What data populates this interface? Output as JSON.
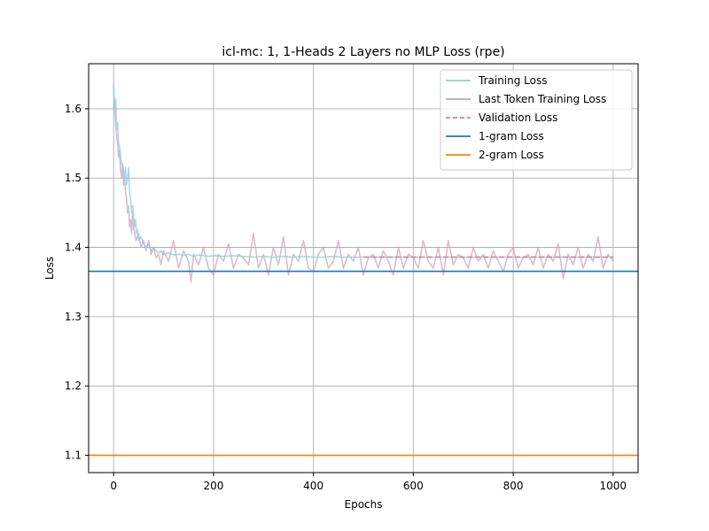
{
  "chart_data": {
    "type": "line",
    "title": "icl-mc: 1, 1-Heads 2 Layers no MLP  Loss (rpe)",
    "xlabel": "Epochs",
    "ylabel": "Loss",
    "xlim": [
      -50,
      1050
    ],
    "ylim": [
      1.075,
      1.665
    ],
    "x_ticks": [
      0,
      200,
      400,
      600,
      800,
      1000
    ],
    "y_ticks": [
      1.1,
      1.2,
      1.3,
      1.4,
      1.5,
      1.6
    ],
    "x_tick_labels": [
      "0",
      "200",
      "400",
      "600",
      "800",
      "1000"
    ],
    "y_tick_labels": [
      "1.1",
      "1.2",
      "1.3",
      "1.4",
      "1.5",
      "1.6"
    ],
    "grid": true,
    "legend_position": "top-right",
    "series": [
      {
        "name": "Training Loss",
        "color": "#87ceeb",
        "style": "solid",
        "x": [
          0,
          2,
          4,
          6,
          8,
          10,
          12,
          14,
          16,
          18,
          20,
          22,
          24,
          26,
          28,
          30,
          32,
          34,
          36,
          38,
          40,
          42,
          44,
          46,
          48,
          50,
          55,
          60,
          65,
          70,
          75,
          80,
          85,
          90,
          95,
          100,
          110,
          120,
          130,
          140,
          150,
          160,
          170,
          180,
          190,
          200,
          220,
          240,
          260,
          280,
          300,
          320,
          340,
          360,
          380,
          400,
          420,
          440,
          460,
          480,
          500,
          550,
          600,
          650,
          700,
          750,
          800,
          850,
          900,
          950,
          1000
        ],
        "y": [
          1.635,
          1.6,
          1.615,
          1.57,
          1.58,
          1.55,
          1.545,
          1.53,
          1.52,
          1.52,
          1.51,
          1.5,
          1.515,
          1.49,
          1.5,
          1.515,
          1.48,
          1.47,
          1.45,
          1.46,
          1.445,
          1.43,
          1.44,
          1.42,
          1.425,
          1.41,
          1.415,
          1.405,
          1.4,
          1.405,
          1.395,
          1.4,
          1.395,
          1.392,
          1.395,
          1.39,
          1.392,
          1.389,
          1.39,
          1.388,
          1.39,
          1.387,
          1.389,
          1.388,
          1.387,
          1.388,
          1.387,
          1.388,
          1.387,
          1.386,
          1.387,
          1.386,
          1.387,
          1.386,
          1.387,
          1.386,
          1.386,
          1.387,
          1.386,
          1.386,
          1.386,
          1.386,
          1.386,
          1.386,
          1.386,
          1.386,
          1.386,
          1.386,
          1.386,
          1.386,
          1.386
        ]
      },
      {
        "name": "Last Token Training Loss",
        "color": "#c8a2b8",
        "style": "solid",
        "x": [
          0,
          2,
          4,
          6,
          8,
          10,
          12,
          14,
          16,
          18,
          20,
          22,
          24,
          26,
          28,
          30,
          32,
          34,
          36,
          38,
          40,
          45,
          50,
          55,
          60,
          65,
          70,
          75,
          80,
          85,
          90,
          95,
          100,
          110,
          120,
          130,
          140,
          150,
          155,
          160,
          170,
          180,
          190,
          200,
          210,
          220,
          230,
          240,
          250,
          260,
          270,
          280,
          290,
          300,
          310,
          320,
          330,
          340,
          350,
          360,
          370,
          380,
          390,
          400,
          410,
          420,
          430,
          440,
          450,
          460,
          470,
          480,
          490,
          500,
          510,
          520,
          530,
          540,
          550,
          560,
          570,
          580,
          590,
          600,
          610,
          620,
          630,
          640,
          650,
          660,
          670,
          680,
          690,
          700,
          710,
          720,
          730,
          740,
          750,
          760,
          770,
          780,
          790,
          800,
          810,
          820,
          830,
          840,
          850,
          860,
          870,
          880,
          890,
          900,
          910,
          920,
          930,
          940,
          950,
          960,
          970,
          980,
          990,
          1000
        ],
        "y": [
          1.6,
          1.61,
          1.58,
          1.56,
          1.55,
          1.53,
          1.54,
          1.51,
          1.5,
          1.52,
          1.49,
          1.5,
          1.48,
          1.47,
          1.45,
          1.46,
          1.43,
          1.44,
          1.42,
          1.45,
          1.43,
          1.41,
          1.42,
          1.4,
          1.41,
          1.395,
          1.41,
          1.39,
          1.4,
          1.385,
          1.39,
          1.375,
          1.395,
          1.38,
          1.41,
          1.37,
          1.395,
          1.38,
          1.35,
          1.39,
          1.375,
          1.4,
          1.37,
          1.36,
          1.39,
          1.38,
          1.405,
          1.37,
          1.39,
          1.385,
          1.375,
          1.42,
          1.37,
          1.39,
          1.36,
          1.4,
          1.375,
          1.415,
          1.36,
          1.39,
          1.38,
          1.41,
          1.37,
          1.365,
          1.39,
          1.4,
          1.37,
          1.38,
          1.41,
          1.37,
          1.39,
          1.38,
          1.4,
          1.36,
          1.385,
          1.39,
          1.37,
          1.395,
          1.38,
          1.36,
          1.4,
          1.37,
          1.39,
          1.385,
          1.37,
          1.41,
          1.38,
          1.37,
          1.4,
          1.36,
          1.41,
          1.375,
          1.39,
          1.385,
          1.37,
          1.4,
          1.38,
          1.39,
          1.37,
          1.395,
          1.38,
          1.365,
          1.39,
          1.4,
          1.37,
          1.385,
          1.39,
          1.375,
          1.4,
          1.37,
          1.39,
          1.38,
          1.405,
          1.355,
          1.39,
          1.375,
          1.4,
          1.37,
          1.39,
          1.38,
          1.415,
          1.37,
          1.39,
          1.38
        ]
      },
      {
        "name": "Validation Loss",
        "color": "#e8769a",
        "style": "dashed",
        "x": [
          500,
          550,
          600,
          650,
          700,
          750,
          800,
          850,
          900,
          950,
          1000
        ],
        "y": [
          1.386,
          1.386,
          1.386,
          1.386,
          1.386,
          1.386,
          1.386,
          1.386,
          1.386,
          1.386,
          1.386
        ]
      },
      {
        "name": "1-gram Loss",
        "color": "#1f77b4",
        "style": "hline",
        "y": 1.3655
      },
      {
        "name": "2-gram Loss",
        "color": "#ff7f0e",
        "style": "hline",
        "y": 1.1
      }
    ]
  }
}
